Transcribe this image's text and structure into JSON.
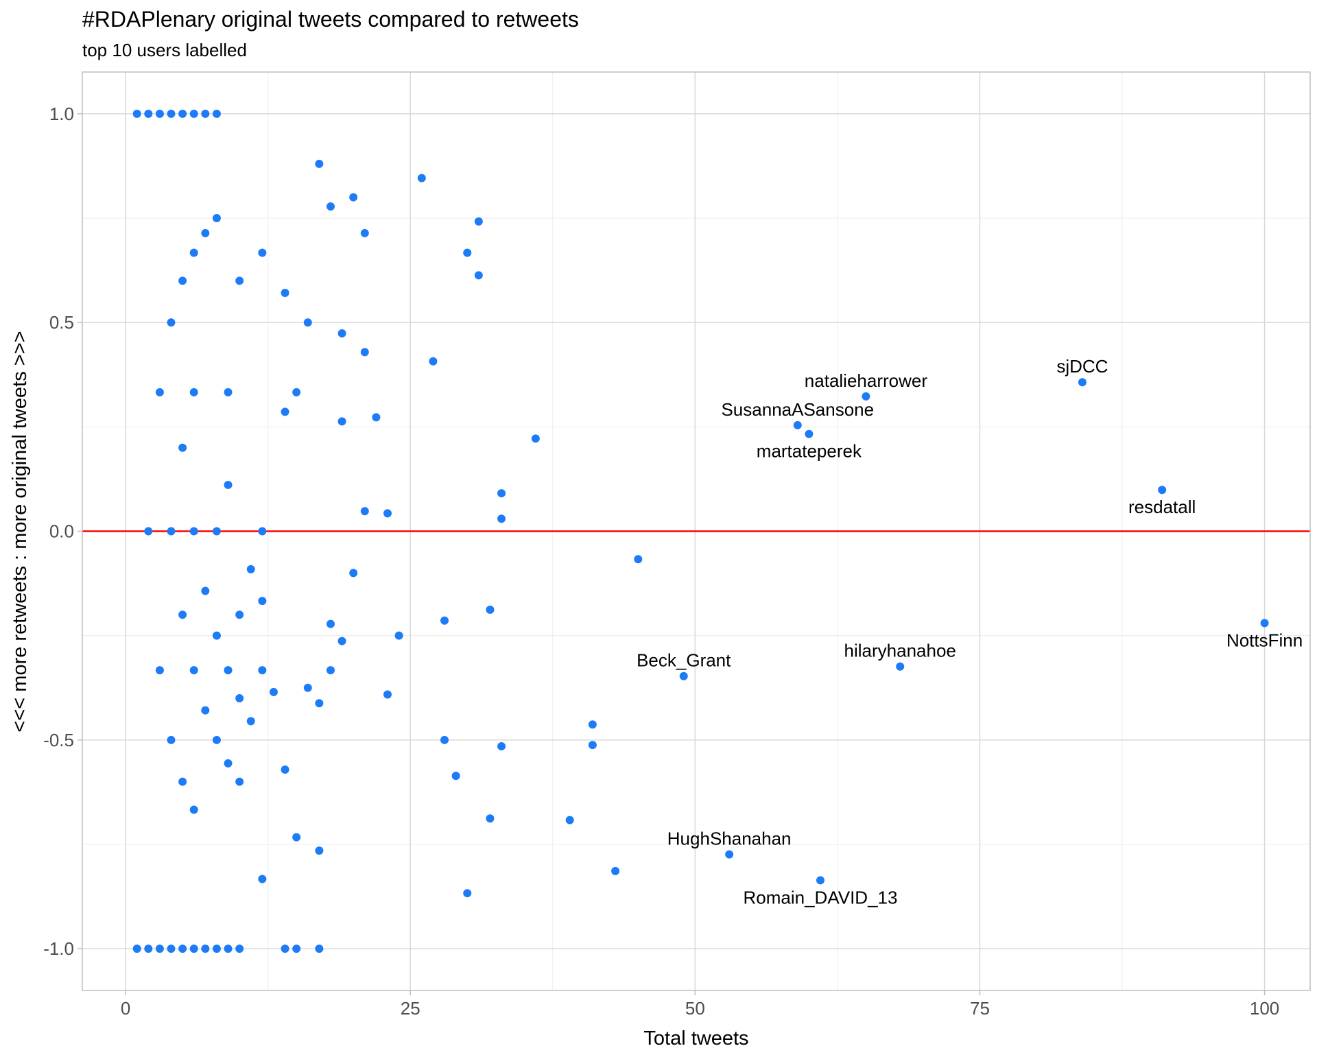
{
  "chart_data": {
    "type": "scatter",
    "title": "#RDAPlenary original tweets compared to retweets",
    "subtitle": "top 10 users labelled",
    "xlabel": "Total tweets",
    "ylabel": "<<< more retweets : more original tweets >>>",
    "xlim": [
      -3.8,
      104
    ],
    "ylim": [
      -1.1,
      1.1
    ],
    "x_ticks": [
      {
        "value": 0,
        "label": "0"
      },
      {
        "value": 25,
        "label": "25"
      },
      {
        "value": 50,
        "label": "50"
      },
      {
        "value": 75,
        "label": "75"
      },
      {
        "value": 100,
        "label": "100"
      }
    ],
    "y_ticks": [
      {
        "value": -1.0,
        "label": "-1.0"
      },
      {
        "value": -0.5,
        "label": "-0.5"
      },
      {
        "value": 0.0,
        "label": "0.0"
      },
      {
        "value": 0.5,
        "label": "0.5"
      },
      {
        "value": 1.0,
        "label": "1.0"
      }
    ],
    "grid": true,
    "reference_line": {
      "y": 0,
      "color": "#ff0000"
    },
    "point_color": "#1e7bf7",
    "points": [
      {
        "x": 1,
        "y": 1.0
      },
      {
        "x": 2,
        "y": 1.0
      },
      {
        "x": 3,
        "y": 1.0
      },
      {
        "x": 4,
        "y": 1.0
      },
      {
        "x": 5,
        "y": 1.0
      },
      {
        "x": 6,
        "y": 1.0
      },
      {
        "x": 7,
        "y": 1.0
      },
      {
        "x": 8,
        "y": 1.0
      },
      {
        "x": 17,
        "y": 0.88
      },
      {
        "x": 26,
        "y": 0.846
      },
      {
        "x": 20,
        "y": 0.8
      },
      {
        "x": 18,
        "y": 0.778
      },
      {
        "x": 8,
        "y": 0.75
      },
      {
        "x": 31,
        "y": 0.742
      },
      {
        "x": 7,
        "y": 0.714
      },
      {
        "x": 21,
        "y": 0.714
      },
      {
        "x": 6,
        "y": 0.667
      },
      {
        "x": 12,
        "y": 0.667
      },
      {
        "x": 30,
        "y": 0.667
      },
      {
        "x": 31,
        "y": 0.613
      },
      {
        "x": 5,
        "y": 0.6
      },
      {
        "x": 10,
        "y": 0.6
      },
      {
        "x": 14,
        "y": 0.571
      },
      {
        "x": 4,
        "y": 0.5
      },
      {
        "x": 16,
        "y": 0.5
      },
      {
        "x": 19,
        "y": 0.474
      },
      {
        "x": 21,
        "y": 0.429
      },
      {
        "x": 27,
        "y": 0.407
      },
      {
        "x": 3,
        "y": 0.333
      },
      {
        "x": 6,
        "y": 0.333
      },
      {
        "x": 9,
        "y": 0.333
      },
      {
        "x": 15,
        "y": 0.333
      },
      {
        "x": 14,
        "y": 0.286
      },
      {
        "x": 22,
        "y": 0.273
      },
      {
        "x": 19,
        "y": 0.263
      },
      {
        "x": 36,
        "y": 0.222
      },
      {
        "x": 5,
        "y": 0.2
      },
      {
        "x": 9,
        "y": 0.111
      },
      {
        "x": 33,
        "y": 0.091
      },
      {
        "x": 21,
        "y": 0.048
      },
      {
        "x": 23,
        "y": 0.043
      },
      {
        "x": 33,
        "y": 0.03
      },
      {
        "x": 2,
        "y": 0.0
      },
      {
        "x": 4,
        "y": 0.0
      },
      {
        "x": 6,
        "y": 0.0
      },
      {
        "x": 8,
        "y": 0.0
      },
      {
        "x": 12,
        "y": 0.0
      },
      {
        "x": 45,
        "y": -0.067
      },
      {
        "x": 11,
        "y": -0.091
      },
      {
        "x": 20,
        "y": -0.1
      },
      {
        "x": 7,
        "y": -0.143
      },
      {
        "x": 12,
        "y": -0.167
      },
      {
        "x": 32,
        "y": -0.188
      },
      {
        "x": 5,
        "y": -0.2
      },
      {
        "x": 10,
        "y": -0.2
      },
      {
        "x": 28,
        "y": -0.214
      },
      {
        "x": 18,
        "y": -0.222
      },
      {
        "x": 8,
        "y": -0.25
      },
      {
        "x": 24,
        "y": -0.25
      },
      {
        "x": 19,
        "y": -0.263
      },
      {
        "x": 3,
        "y": -0.333
      },
      {
        "x": 6,
        "y": -0.333
      },
      {
        "x": 9,
        "y": -0.333
      },
      {
        "x": 12,
        "y": -0.333
      },
      {
        "x": 18,
        "y": -0.333
      },
      {
        "x": 16,
        "y": -0.375
      },
      {
        "x": 13,
        "y": -0.385
      },
      {
        "x": 23,
        "y": -0.391
      },
      {
        "x": 10,
        "y": -0.4
      },
      {
        "x": 17,
        "y": -0.412
      },
      {
        "x": 7,
        "y": -0.429
      },
      {
        "x": 11,
        "y": -0.455
      },
      {
        "x": 41,
        "y": -0.463
      },
      {
        "x": 4,
        "y": -0.5
      },
      {
        "x": 8,
        "y": -0.5
      },
      {
        "x": 28,
        "y": -0.5
      },
      {
        "x": 41,
        "y": -0.512
      },
      {
        "x": 33,
        "y": -0.515
      },
      {
        "x": 9,
        "y": -0.556
      },
      {
        "x": 14,
        "y": -0.571
      },
      {
        "x": 29,
        "y": -0.586
      },
      {
        "x": 5,
        "y": -0.6
      },
      {
        "x": 10,
        "y": -0.6
      },
      {
        "x": 6,
        "y": -0.667
      },
      {
        "x": 32,
        "y": -0.688
      },
      {
        "x": 39,
        "y": -0.692
      },
      {
        "x": 15,
        "y": -0.733
      },
      {
        "x": 17,
        "y": -0.765
      },
      {
        "x": 43,
        "y": -0.814
      },
      {
        "x": 12,
        "y": -0.833
      },
      {
        "x": 30,
        "y": -0.867
      },
      {
        "x": 1,
        "y": -1.0
      },
      {
        "x": 2,
        "y": -1.0
      },
      {
        "x": 3,
        "y": -1.0
      },
      {
        "x": 4,
        "y": -1.0
      },
      {
        "x": 5,
        "y": -1.0
      },
      {
        "x": 6,
        "y": -1.0
      },
      {
        "x": 7,
        "y": -1.0
      },
      {
        "x": 8,
        "y": -1.0
      },
      {
        "x": 9,
        "y": -1.0
      },
      {
        "x": 10,
        "y": -1.0
      },
      {
        "x": 14,
        "y": -1.0
      },
      {
        "x": 15,
        "y": -1.0
      },
      {
        "x": 17,
        "y": -1.0
      },
      {
        "x": 84,
        "y": 0.357,
        "label": "sjDCC",
        "label_side": "above"
      },
      {
        "x": 65,
        "y": 0.323,
        "label": "natalieharrower",
        "label_side": "above"
      },
      {
        "x": 59,
        "y": 0.254,
        "label": "SusannaASansone",
        "label_side": "above"
      },
      {
        "x": 60,
        "y": 0.233,
        "label": "martateperek",
        "label_side": "below"
      },
      {
        "x": 91,
        "y": 0.099,
        "label": "resdatall",
        "label_side": "below"
      },
      {
        "x": 100,
        "y": -0.22,
        "label": "NottsFinn",
        "label_side": "below"
      },
      {
        "x": 68,
        "y": -0.324,
        "label": "hilaryhanahoe",
        "label_side": "above"
      },
      {
        "x": 49,
        "y": -0.347,
        "label": "Beck_Grant",
        "label_side": "above"
      },
      {
        "x": 53,
        "y": -0.774,
        "label": "HughShanahan",
        "label_side": "above"
      },
      {
        "x": 61,
        "y": -0.836,
        "label": "Romain_DAVID_13",
        "label_side": "below"
      }
    ]
  }
}
